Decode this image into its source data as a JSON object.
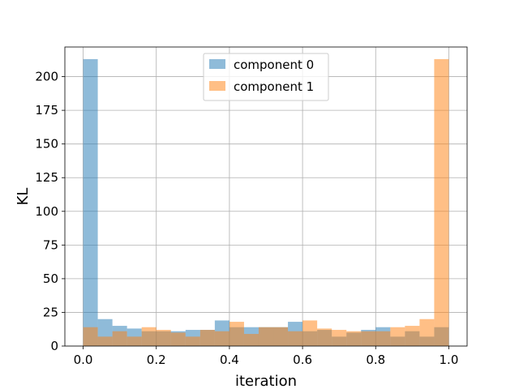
{
  "chart_data": {
    "type": "bar",
    "subtype": "overlapping-histogram",
    "xlabel": "iteration",
    "ylabel": "KL",
    "xlim": [
      -0.05,
      1.05
    ],
    "ylim": [
      0,
      222
    ],
    "xticks": [
      0.0,
      0.2,
      0.4,
      0.6,
      0.8,
      1.0
    ],
    "xtick_labels": [
      "0.0",
      "0.2",
      "0.4",
      "0.6",
      "0.8",
      "1.0"
    ],
    "yticks": [
      0,
      25,
      50,
      75,
      100,
      125,
      150,
      175,
      200
    ],
    "ytick_labels": [
      "0",
      "25",
      "50",
      "75",
      "100",
      "125",
      "150",
      "175",
      "200"
    ],
    "grid": true,
    "legend_position": "top-center",
    "bin_edges": [
      0.0,
      0.04,
      0.08,
      0.12,
      0.16,
      0.2,
      0.24,
      0.28,
      0.32,
      0.36,
      0.4,
      0.44,
      0.48,
      0.52,
      0.56,
      0.6,
      0.64,
      0.68,
      0.72,
      0.76,
      0.8,
      0.84,
      0.88,
      0.92,
      0.96,
      1.0
    ],
    "series": [
      {
        "name": "component 0",
        "color": "#1f77b4",
        "opacity": 0.5,
        "values": [
          213,
          20,
          15,
          13,
          11,
          11,
          11,
          12,
          12,
          19,
          14,
          14,
          14,
          14,
          18,
          11,
          12,
          7,
          10,
          12,
          14,
          7,
          11,
          7,
          14
        ]
      },
      {
        "name": "component 1",
        "color": "#ff7f0e",
        "opacity": 0.5,
        "values": [
          14,
          7,
          11,
          7,
          14,
          12,
          10,
          7,
          12,
          11,
          18,
          9,
          14,
          14,
          11,
          19,
          13,
          12,
          11,
          11,
          11,
          14,
          15,
          20,
          213
        ]
      }
    ]
  }
}
